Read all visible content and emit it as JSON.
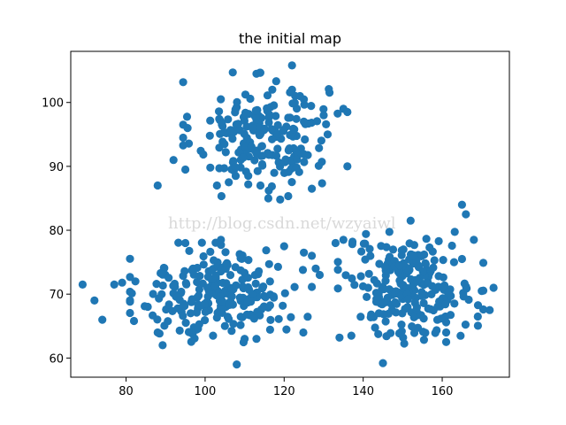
{
  "chart_data": {
    "type": "scatter",
    "title": "the initial map",
    "xlabel": "",
    "ylabel": "",
    "xlim": [
      66,
      177
    ],
    "ylim": [
      57,
      108
    ],
    "xticks": [
      80,
      100,
      120,
      140,
      160
    ],
    "yticks": [
      60,
      70,
      80,
      90,
      100
    ],
    "xtick_labels": [
      "80",
      "100",
      "120",
      "140",
      "160"
    ],
    "ytick_labels": [
      "60",
      "70",
      "80",
      "90",
      "100"
    ],
    "grid": false,
    "legend": "none",
    "marker_color": "#1f77b4",
    "watermark": "http://blog.csdn.net/wzyaiwl",
    "clusters": [
      {
        "center": [
          114,
          95
        ],
        "spread": [
          8.5,
          4.2
        ],
        "count": 200,
        "points": [
          [
            107,
            104.7
          ],
          [
            113,
            104.5
          ],
          [
            122,
            105.8
          ],
          [
            122,
            102
          ],
          [
            117,
            102
          ],
          [
            124,
            101
          ],
          [
            125,
            97
          ],
          [
            88,
            87
          ],
          [
            92,
            91
          ],
          [
            95,
            89.5
          ],
          [
            103,
            87
          ],
          [
            106,
            87.5
          ],
          [
            114,
            87
          ],
          [
            116,
            85
          ],
          [
            119,
            84.8
          ],
          [
            127,
            86.5
          ],
          [
            136,
            90
          ],
          [
            135,
            99
          ],
          [
            136,
            98.5
          ],
          [
            130,
            98
          ],
          [
            131,
            95
          ]
        ]
      },
      {
        "center": [
          104,
          70
        ],
        "spread": [
          10,
          3.5
        ],
        "count": 230,
        "points": [
          [
            69,
            71.5
          ],
          [
            72,
            69
          ],
          [
            74,
            66
          ],
          [
            77,
            71.5
          ],
          [
            79,
            71.8
          ],
          [
            82,
            65.8
          ],
          [
            88,
            64
          ],
          [
            108,
            59
          ],
          [
            113,
            63
          ],
          [
            120,
            77.5
          ],
          [
            125,
            76.5
          ],
          [
            127,
            76
          ],
          [
            128,
            74
          ],
          [
            129,
            73
          ],
          [
            104,
            78.5
          ],
          [
            95,
            78
          ],
          [
            110,
            63
          ],
          [
            102,
            63.5
          ]
        ]
      },
      {
        "center": [
          152,
          71
        ],
        "spread": [
          8,
          3.8
        ],
        "count": 230,
        "points": [
          [
            133,
            78
          ],
          [
            135,
            78.5
          ],
          [
            145,
            59.2
          ],
          [
            134,
            63.2
          ],
          [
            137,
            63.5
          ],
          [
            152,
            81.5
          ],
          [
            165,
            84
          ],
          [
            166,
            82.5
          ],
          [
            168,
            78.5
          ],
          [
            161,
            62.5
          ],
          [
            161,
            64
          ],
          [
            169,
            66.5
          ],
          [
            170,
            70.5
          ],
          [
            173,
            71
          ],
          [
            172,
            67.5
          ],
          [
            165,
            75.5
          ],
          [
            163,
            75
          ]
        ]
      }
    ]
  }
}
